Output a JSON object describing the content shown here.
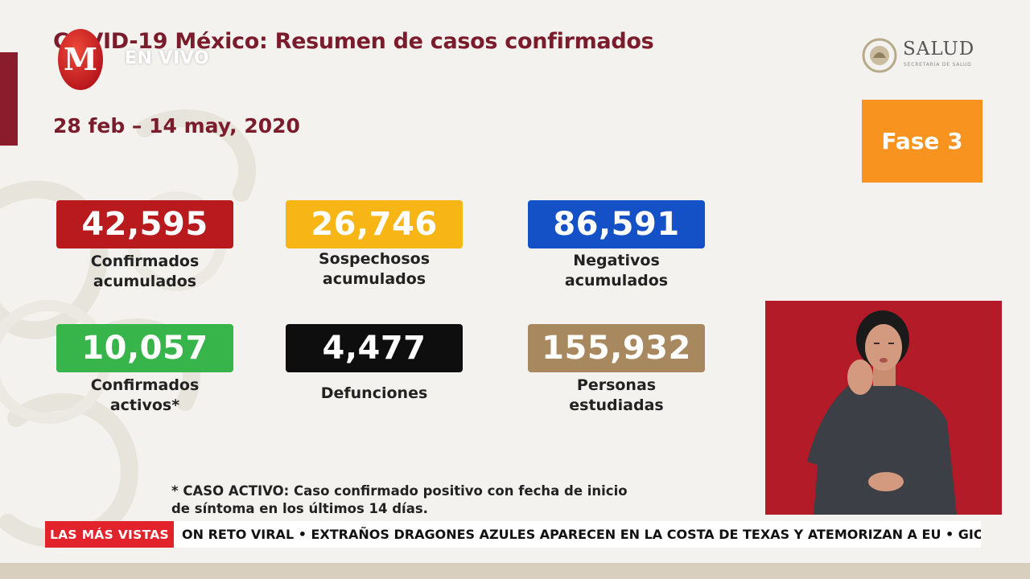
{
  "header": {
    "title": "COVID-19 México: Resumen de casos confirmados",
    "date_range": "28 feb – 14 may, 2020",
    "live_label": "EN VIVO",
    "logo_letter": "M"
  },
  "brand": {
    "name": "SALUD",
    "subtitle": "SECRETARÍA DE SALUD"
  },
  "phase": {
    "label": "Fase 3",
    "color": "#f7931e"
  },
  "stats": [
    {
      "value": "42,595",
      "label_line1": "Confirmados",
      "label_line2": "acumulados",
      "color": "#b81a1d"
    },
    {
      "value": "26,746",
      "label_line1": "Sospechosos",
      "label_line2": "acumulados",
      "color": "#f7b516"
    },
    {
      "value": "86,591",
      "label_line1": "Negativos",
      "label_line2": "acumulados",
      "color": "#1451c7"
    },
    {
      "value": "10,057",
      "label_line1": "Confirmados",
      "label_line2": "activos*",
      "color": "#37b44a"
    },
    {
      "value": "4,477",
      "label_line1": "Defunciones",
      "label_line2": "",
      "color": "#0e0e0e"
    },
    {
      "value": "155,932",
      "label_line1": "Personas",
      "label_line2": "estudiadas",
      "color": "#a8885f"
    }
  ],
  "footnote": {
    "line1": "* CASO ACTIVO: Caso confirmado positivo con fecha de inicio",
    "line2": "de síntoma en los últimos 14 días."
  },
  "ticker": {
    "label": "LAS MÁS VISTAS",
    "text": "ON RETO VIRAL  •  EXTRAÑOS DRAGONES AZULES APARECEN EN LA COSTA DE TEXAS Y ATEMORIZAN A EU  •  GIOVA"
  },
  "colors": {
    "accent": "#7a1c2c",
    "interpreter_bg": "#b31b28",
    "ticker_label": "#e3232b"
  }
}
